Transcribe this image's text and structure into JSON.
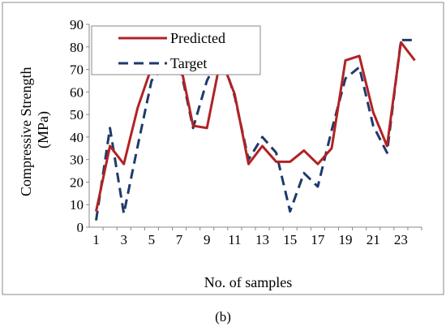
{
  "chart_data": {
    "type": "line",
    "title": "",
    "xlabel": "No. of samples",
    "ylabel": "Compressive Strength (MPa)",
    "ylabel_lines": [
      "Compressive Strength",
      "(MPa)"
    ],
    "ylim": [
      0,
      90
    ],
    "yticks": [
      0,
      10,
      20,
      30,
      40,
      50,
      60,
      70,
      80,
      90
    ],
    "x": [
      1,
      2,
      3,
      4,
      5,
      6,
      7,
      8,
      9,
      10,
      11,
      12,
      13,
      14,
      15,
      16,
      17,
      18,
      19,
      20,
      21,
      22,
      23,
      24
    ],
    "xtick_labels": [
      "1",
      "3",
      "5",
      "7",
      "9",
      "11",
      "13",
      "15",
      "17",
      "19",
      "21",
      "23"
    ],
    "xtick_values": [
      1,
      3,
      5,
      7,
      9,
      11,
      13,
      15,
      17,
      19,
      21,
      23
    ],
    "grid": false,
    "legend_position": "top-left",
    "series": [
      {
        "name": "Predicted",
        "color": "#b22222",
        "style": "solid",
        "values": [
          7,
          36,
          28,
          53,
          71,
          70,
          75,
          45,
          44,
          75,
          59,
          28,
          36,
          29,
          29,
          34,
          28,
          35,
          74,
          76,
          51,
          36,
          82,
          74
        ]
      },
      {
        "name": "Target",
        "color": "#1f3a6b",
        "style": "dashed",
        "values": [
          3,
          44,
          6,
          36,
          65,
          72,
          73,
          44,
          65,
          77,
          58,
          30,
          40,
          33,
          7,
          24,
          18,
          43,
          66,
          71,
          45,
          33,
          83,
          83
        ]
      }
    ]
  },
  "caption": "(b)"
}
